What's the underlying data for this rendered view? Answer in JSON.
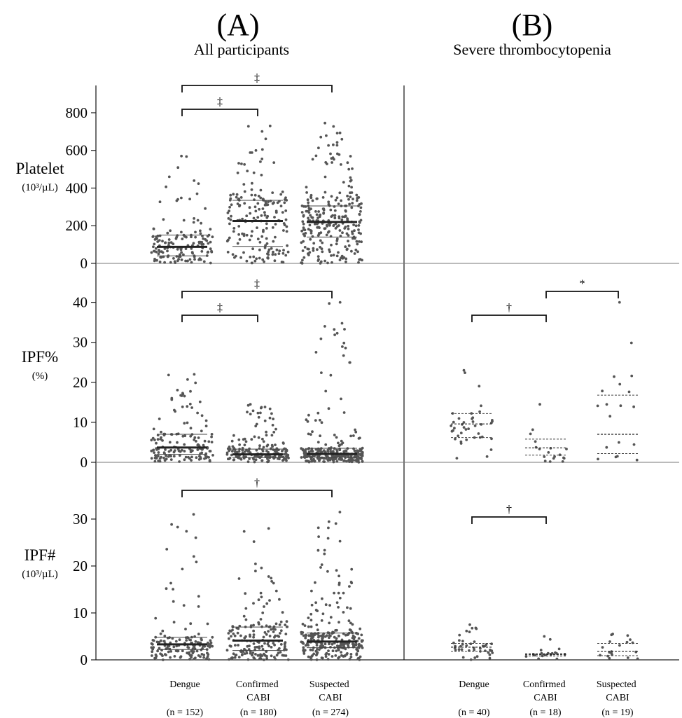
{
  "figure": {
    "panels": [
      {
        "id": "A",
        "label": "(A)",
        "subtitle": "All participants"
      },
      {
        "id": "B",
        "label": "(B)",
        "subtitle": "Severe thrombocytopenia"
      }
    ],
    "rows": [
      {
        "id": "platelet",
        "label": "Platelet",
        "unit": "(10³/µL)"
      },
      {
        "id": "ipfp",
        "label": "IPF%",
        "unit": "(%)"
      },
      {
        "id": "ipfn",
        "label": "IPF#",
        "unit": "(10³/µL)"
      }
    ],
    "groups": {
      "A": [
        {
          "name": "Dengue",
          "n": "(n = 152)"
        },
        {
          "name": "Confirmed\nCABI",
          "n": "(n = 180)"
        },
        {
          "name": "Suspected\nCABI",
          "n": "(n = 274)"
        }
      ],
      "B": [
        {
          "name": "Dengue",
          "n": "(n = 40)"
        },
        {
          "name": "Confirmed\nCABI",
          "n": "(n = 18)"
        },
        {
          "name": "Suspected\nCABI",
          "n": "(n = 19)"
        }
      ]
    }
  },
  "chart_data": [
    {
      "type": "scatter",
      "panel": "A",
      "row": "Platelet",
      "ylim": [
        0,
        900
      ],
      "yticks": [
        0,
        200,
        400,
        600,
        800
      ],
      "categories": [
        "Dengue",
        "Confirmed CABI",
        "Suspected CABI"
      ],
      "n": [
        152,
        180,
        274
      ],
      "median": [
        88,
        225,
        220
      ],
      "q1": [
        40,
        90,
        140
      ],
      "q3": [
        150,
        335,
        305
      ],
      "max": [
        570,
        730,
        745
      ],
      "comparisons": [
        {
          "from": 0,
          "to": 1,
          "symbol": "‡"
        },
        {
          "from": 0,
          "to": 2,
          "symbol": "‡"
        }
      ]
    },
    {
      "type": "scatter",
      "panel": "A",
      "row": "IPF%",
      "ylim": [
        0,
        45
      ],
      "yticks": [
        0,
        10,
        20,
        30,
        40
      ],
      "categories": [
        "Dengue",
        "Confirmed CABI",
        "Suspected CABI"
      ],
      "n": [
        152,
        180,
        274
      ],
      "median": [
        3.7,
        2.0,
        2.1
      ],
      "q1": [
        2.0,
        1.2,
        1.3
      ],
      "q3": [
        7.0,
        3.3,
        3.5
      ],
      "max": [
        22,
        14.5,
        40
      ],
      "comparisons": [
        {
          "from": 0,
          "to": 1,
          "symbol": "‡"
        },
        {
          "from": 0,
          "to": 2,
          "symbol": "‡"
        }
      ]
    },
    {
      "type": "scatter",
      "panel": "A",
      "row": "IPF#",
      "ylim": [
        0,
        37
      ],
      "yticks": [
        0,
        10,
        20,
        30
      ],
      "categories": [
        "Dengue",
        "Confirmed CABI",
        "Suspected CABI"
      ],
      "n": [
        152,
        180,
        274
      ],
      "median": [
        3.3,
        4.1,
        3.9
      ],
      "q1": [
        2.2,
        2.0,
        2.6
      ],
      "q3": [
        4.8,
        7.0,
        5.7
      ],
      "max": [
        31,
        28,
        31.5
      ],
      "comparisons": [
        {
          "from": 0,
          "to": 2,
          "symbol": "†"
        }
      ]
    },
    {
      "type": "scatter",
      "panel": "B",
      "row": "IPF%",
      "ylim": [
        0,
        45
      ],
      "categories": [
        "Dengue",
        "Confirmed CABI",
        "Suspected CABI"
      ],
      "n": [
        40,
        18,
        19
      ],
      "median": [
        9.6,
        3.6,
        7.0
      ],
      "q1": [
        6.2,
        1.8,
        2.2
      ],
      "q3": [
        12.2,
        5.8,
        16.8
      ],
      "max": [
        23,
        14.5,
        40
      ],
      "comparisons": [
        {
          "from": 0,
          "to": 1,
          "symbol": "†"
        },
        {
          "from": 1,
          "to": 2,
          "symbol": "*"
        }
      ]
    },
    {
      "type": "scatter",
      "panel": "B",
      "row": "IPF#",
      "ylim": [
        0,
        37
      ],
      "categories": [
        "Dengue",
        "Confirmed CABI",
        "Suspected CABI"
      ],
      "n": [
        40,
        18,
        19
      ],
      "median": [
        2.7,
        1.1,
        1.8
      ],
      "q1": [
        1.8,
        0.8,
        0.9
      ],
      "q3": [
        3.5,
        1.4,
        3.5
      ],
      "max": [
        7.5,
        5.0,
        5.5
      ],
      "comparisons": [
        {
          "from": 0,
          "to": 1,
          "symbol": "†"
        }
      ]
    }
  ]
}
